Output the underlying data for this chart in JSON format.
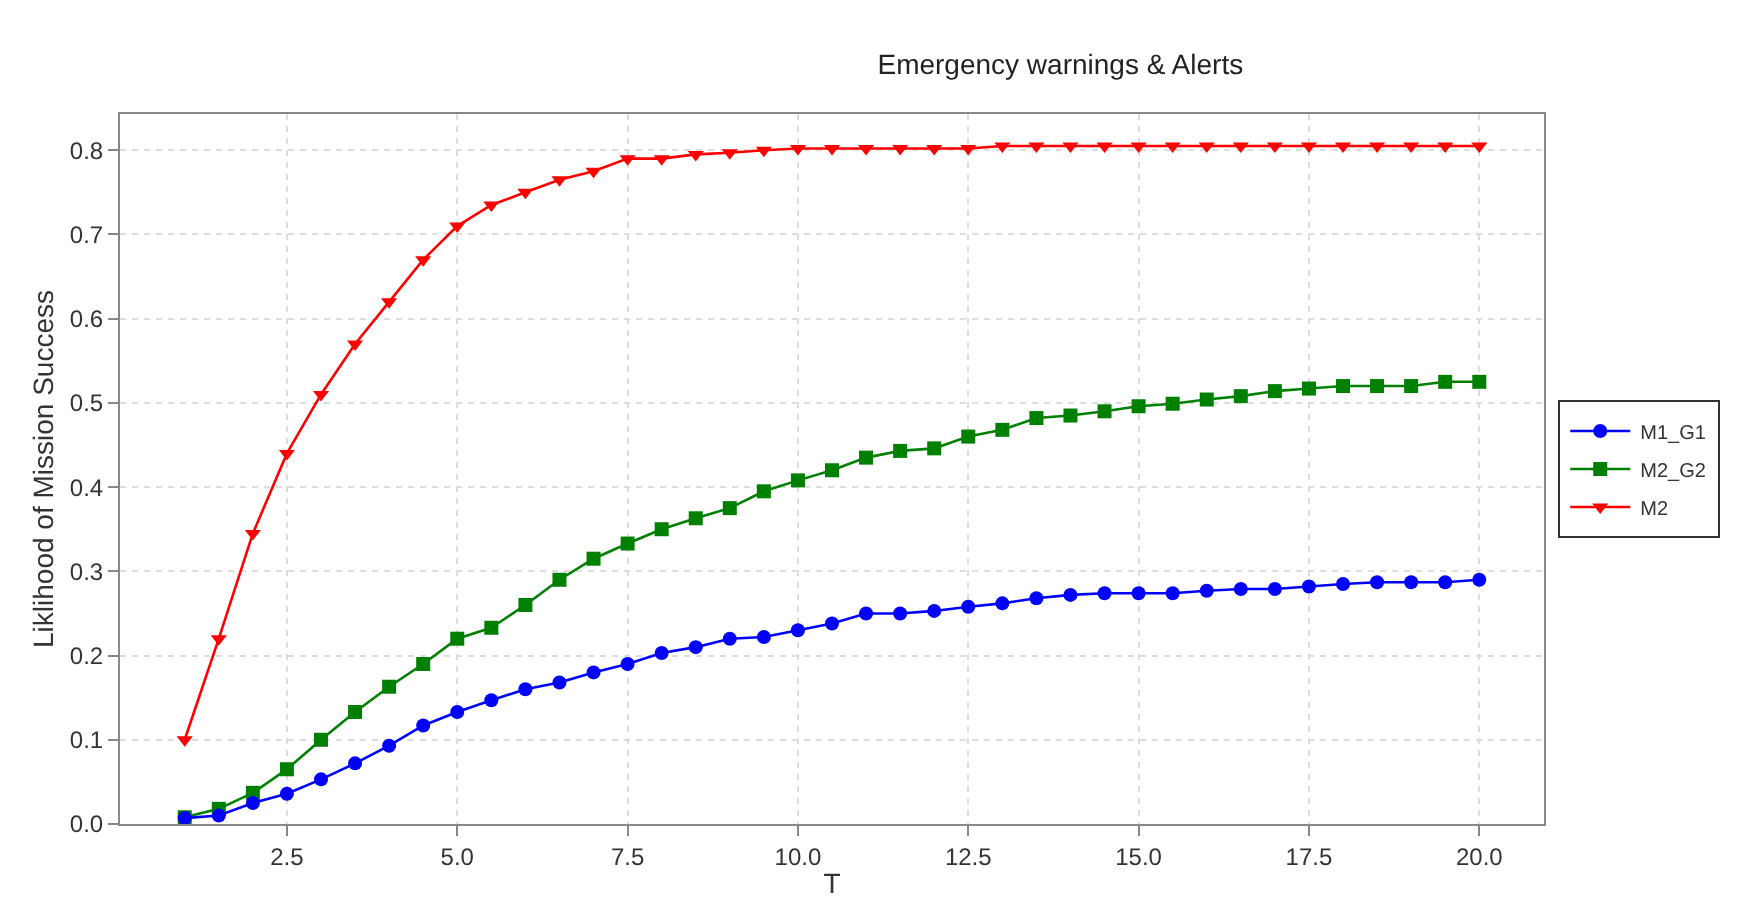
{
  "chart_data": {
    "type": "line",
    "title": "Emergency warnings & Alerts",
    "xlabel": "T",
    "ylabel": "Liklihood of Mission Success",
    "x": [
      1,
      1.5,
      2,
      2.5,
      3,
      3.5,
      4,
      4.5,
      5,
      5.5,
      6,
      6.5,
      7,
      7.5,
      8,
      8.5,
      9,
      9.5,
      10,
      10.5,
      11,
      11.5,
      12,
      12.5,
      13,
      13.5,
      14,
      14.5,
      15,
      15.5,
      16,
      16.5,
      17,
      17.5,
      18,
      18.5,
      19,
      19.5,
      20
    ],
    "series": [
      {
        "name": "M1_G1",
        "color": "#0000ff",
        "marker": "circle",
        "values": [
          0.007,
          0.01,
          0.025,
          0.036,
          0.053,
          0.072,
          0.093,
          0.117,
          0.133,
          0.147,
          0.16,
          0.168,
          0.18,
          0.19,
          0.203,
          0.21,
          0.22,
          0.222,
          0.23,
          0.238,
          0.25,
          0.25,
          0.253,
          0.258,
          0.262,
          0.268,
          0.272,
          0.274,
          0.274,
          0.274,
          0.277,
          0.279,
          0.279,
          0.282,
          0.285,
          0.287,
          0.287,
          0.287,
          0.29
        ]
      },
      {
        "name": "M2_G2",
        "color": "#008000",
        "marker": "square",
        "values": [
          0.008,
          0.018,
          0.037,
          0.065,
          0.1,
          0.133,
          0.163,
          0.19,
          0.22,
          0.233,
          0.26,
          0.29,
          0.315,
          0.333,
          0.35,
          0.363,
          0.375,
          0.395,
          0.408,
          0.42,
          0.435,
          0.443,
          0.446,
          0.46,
          0.468,
          0.482,
          0.485,
          0.49,
          0.496,
          0.499,
          0.504,
          0.508,
          0.514,
          0.517,
          0.52,
          0.52,
          0.52,
          0.525,
          0.525
        ]
      },
      {
        "name": "M2",
        "color": "#ff0000",
        "marker": "triangle-down",
        "values": [
          0.1,
          0.22,
          0.345,
          0.44,
          0.51,
          0.57,
          0.62,
          0.67,
          0.71,
          0.735,
          0.75,
          0.765,
          0.775,
          0.79,
          0.79,
          0.795,
          0.797,
          0.8,
          0.802,
          0.802,
          0.802,
          0.802,
          0.802,
          0.802,
          0.805,
          0.805,
          0.805,
          0.805,
          0.805,
          0.805,
          0.805,
          0.805,
          0.805,
          0.805,
          0.805,
          0.805,
          0.805,
          0.805,
          0.805
        ]
      }
    ],
    "xlim": [
      0.05,
      20.95
    ],
    "xticks": [
      {
        "value": 2.5,
        "label": "2.5"
      },
      {
        "value": 5,
        "label": "5.0"
      },
      {
        "value": 7.5,
        "label": "7.5"
      },
      {
        "value": 10,
        "label": "10.0"
      },
      {
        "value": 12.5,
        "label": "12.5"
      },
      {
        "value": 15,
        "label": "15.0"
      },
      {
        "value": 17.5,
        "label": "17.5"
      },
      {
        "value": 20,
        "label": "20.0"
      }
    ],
    "ylim": [
      0,
      0.843
    ],
    "yticks": [
      {
        "value": 0,
        "label": "0.0"
      },
      0.1,
      0.2,
      0.3,
      0.4,
      0.5,
      0.6,
      0.7,
      0.8
    ],
    "grid": true,
    "legend": "right",
    "line_style": "solid"
  }
}
